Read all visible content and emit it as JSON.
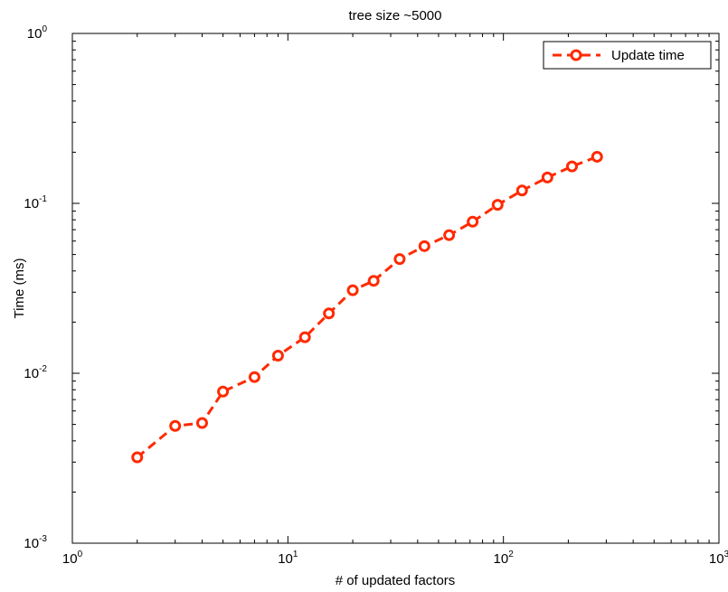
{
  "chart_data": {
    "type": "line",
    "title": "tree size ~5000",
    "xlabel": "# of updated factors",
    "ylabel": "Time (ms)",
    "xscale": "log",
    "yscale": "log",
    "xlim": [
      1,
      1000
    ],
    "ylim": [
      0.001,
      1
    ],
    "grid": false,
    "legend_position": "top-right",
    "x_ticks": [
      {
        "base": "10",
        "exp": "0"
      },
      {
        "base": "10",
        "exp": "1"
      },
      {
        "base": "10",
        "exp": "2"
      },
      {
        "base": "10",
        "exp": "3"
      }
    ],
    "y_ticks": [
      {
        "base": "10",
        "exp": "-3"
      },
      {
        "base": "10",
        "exp": "-2"
      },
      {
        "base": "10",
        "exp": "-1"
      },
      {
        "base": "10",
        "exp": "0"
      }
    ],
    "series": [
      {
        "name": "Update time",
        "color": "#ff2a00",
        "line_style": "dashed",
        "marker": "circle",
        "x": [
          2,
          3,
          4,
          5,
          7,
          9,
          12,
          15.5,
          20,
          25,
          33,
          43,
          56,
          72,
          94,
          122,
          160,
          208,
          272
        ],
        "y": [
          0.0032,
          0.0049,
          0.0051,
          0.0078,
          0.0095,
          0.0127,
          0.0163,
          0.0225,
          0.0308,
          0.035,
          0.047,
          0.056,
          0.065,
          0.078,
          0.098,
          0.119,
          0.142,
          0.165,
          0.188
        ]
      }
    ]
  }
}
